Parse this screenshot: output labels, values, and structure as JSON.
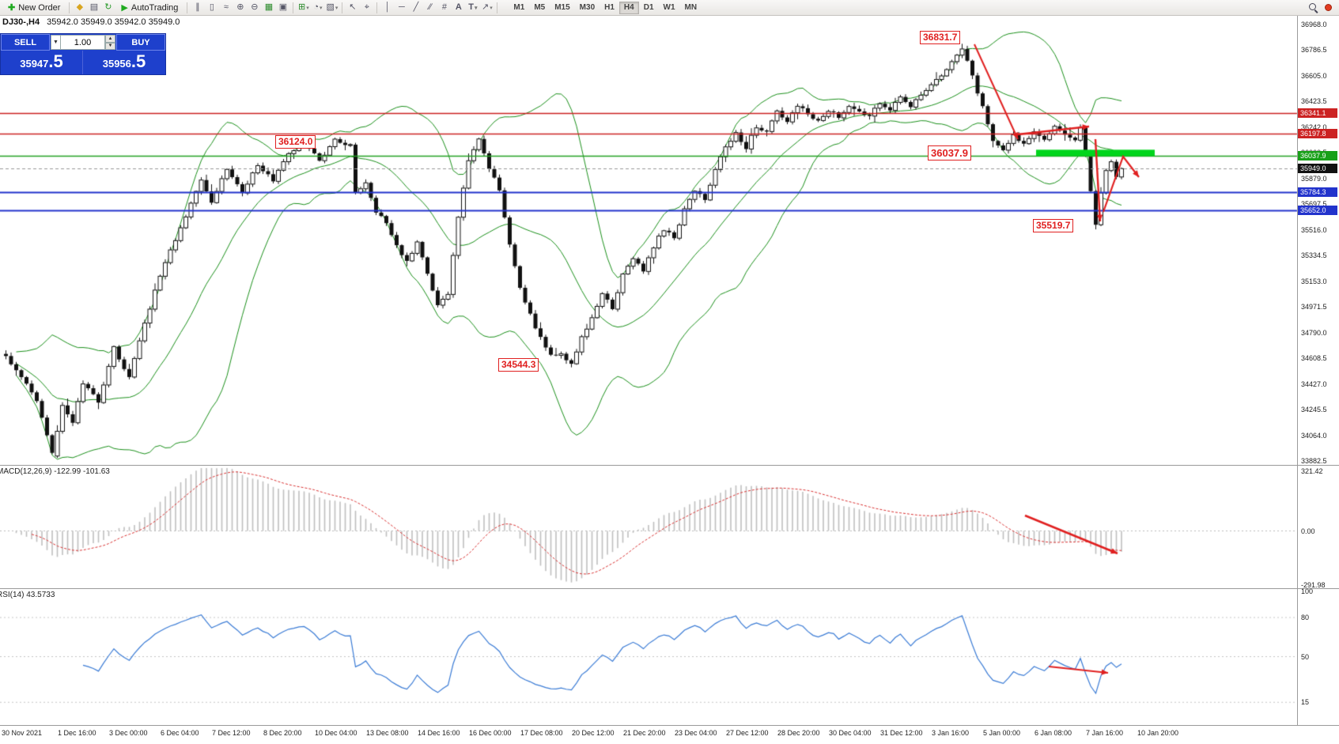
{
  "toolbar": {
    "new_order_label": "New Order",
    "autotrading_label": "AutoTrading",
    "timeframe_labels": [
      "M1",
      "M5",
      "M15",
      "M30",
      "H1",
      "H4",
      "D1",
      "W1",
      "MN"
    ],
    "active_timeframe": "H4"
  },
  "symbol_bar": {
    "symbol_period": "DJ30-,H4",
    "quotes": "35942.0 35949.0 35942.0 35949.0"
  },
  "trade_panel": {
    "sell_label": "SELL",
    "buy_label": "BUY",
    "lot_value": "1.00",
    "sell_price_small": "35947",
    "sell_price_big": ".5",
    "buy_price_small": "35956",
    "buy_price_big": ".5"
  },
  "annotations": {
    "high_label": "36831.7",
    "resistance_label": "36124.0",
    "mid_label": "36037.9",
    "swing_low_label": "35519.7",
    "major_low_label": "34544.3"
  },
  "macd_panel": {
    "label": "MACD(12,26,9) -122.99 -101.63",
    "axis_values": [
      "321.42",
      "0.00",
      "-291.98"
    ]
  },
  "rsi_panel": {
    "label": "RSI(14) 43.5733",
    "axis_values": [
      "100",
      "80",
      "50",
      "15"
    ]
  },
  "price_axis": {
    "ladder": [
      "36968.0",
      "36786.5",
      "36605.0",
      "36423.5",
      "36242.0",
      "36060.5",
      "35879.0",
      "35697.5",
      "35516.0",
      "35334.5",
      "35153.0",
      "34971.5",
      "34790.0",
      "34608.5",
      "34427.0",
      "34245.5",
      "34064.0",
      "33882.5"
    ],
    "tags": [
      {
        "value": "36341.1",
        "price": 36341.1,
        "color": "#cc2222"
      },
      {
        "value": "36197.8",
        "price": 36197.8,
        "color": "#cc2222"
      },
      {
        "value": "36037.9",
        "price": 36037.9,
        "color": "#18a018"
      },
      {
        "value": "35949.0",
        "price": 35949.0,
        "color": "#111111"
      },
      {
        "value": "35784.3",
        "price": 35784.3,
        "color": "#2233cc"
      },
      {
        "value": "35652.0",
        "price": 35652.0,
        "color": "#2233cc"
      }
    ]
  },
  "time_axis": [
    "30 Nov 2021",
    "1 Dec 16:00",
    "3 Dec 00:00",
    "6 Dec 04:00",
    "7 Dec 12:00",
    "8 Dec 20:00",
    "10 Dec 04:00",
    "13 Dec 08:00",
    "14 Dec 16:00",
    "16 Dec 00:00",
    "17 Dec 08:00",
    "20 Dec 12:00",
    "21 Dec 20:00",
    "23 Dec 04:00",
    "27 Dec 12:00",
    "28 Dec 20:00",
    "30 Dec 04:00",
    "31 Dec 12:00",
    "3 Jan 16:00",
    "5 Jan 00:00",
    "6 Jan 08:00",
    "7 Jan 16:00",
    "10 Jan 20:00"
  ],
  "colors": {
    "panel_blue": "#1e40cc",
    "annotation_red": "#e02020",
    "zone_green": "#00d51c",
    "band_green": "#1a8f1a",
    "rsi_blue": "#3a7bd5",
    "macd_signal_red": "#d83030",
    "histogram_gray": "#bfbfbf",
    "hline_red": "#cc2222",
    "hline_green": "#22a022",
    "hline_blue": "#2233cc",
    "candle_outline": "#111111"
  },
  "chart_data": {
    "type": "candlestick",
    "symbol": "DJ30-",
    "timeframe": "H4",
    "price_range": [
      33882.5,
      36968.0
    ],
    "candle_count": 218,
    "current_bid": 35949.0,
    "sell_quote": 35947.5,
    "buy_quote": 35956.5,
    "close_path_anchors": [
      [
        0,
        34620
      ],
      [
        3,
        34480
      ],
      [
        6,
        34300
      ],
      [
        9,
        33930
      ],
      [
        11,
        34280
      ],
      [
        13,
        34150
      ],
      [
        15,
        34430
      ],
      [
        18,
        34300
      ],
      [
        21,
        34680
      ],
      [
        24,
        34470
      ],
      [
        27,
        34850
      ],
      [
        30,
        35200
      ],
      [
        33,
        35450
      ],
      [
        36,
        35700
      ],
      [
        38,
        35880
      ],
      [
        40,
        35720
      ],
      [
        43,
        35950
      ],
      [
        46,
        35780
      ],
      [
        49,
        35980
      ],
      [
        52,
        35860
      ],
      [
        55,
        36060
      ],
      [
        58,
        36124
      ],
      [
        61,
        36010
      ],
      [
        64,
        36150
      ],
      [
        67,
        36110
      ],
      [
        68,
        35780
      ],
      [
        70,
        35850
      ],
      [
        72,
        35650
      ],
      [
        74,
        35560
      ],
      [
        76,
        35400
      ],
      [
        78,
        35300
      ],
      [
        80,
        35420
      ],
      [
        82,
        35200
      ],
      [
        84,
        34990
      ],
      [
        86,
        35060
      ],
      [
        88,
        35600
      ],
      [
        90,
        36000
      ],
      [
        92,
        36150
      ],
      [
        94,
        35950
      ],
      [
        96,
        35800
      ],
      [
        98,
        35420
      ],
      [
        100,
        35100
      ],
      [
        103,
        34820
      ],
      [
        106,
        34630
      ],
      [
        108,
        34650
      ],
      [
        110,
        34560
      ],
      [
        112,
        34750
      ],
      [
        114,
        34900
      ],
      [
        116,
        35060
      ],
      [
        118,
        34960
      ],
      [
        120,
        35200
      ],
      [
        122,
        35320
      ],
      [
        124,
        35220
      ],
      [
        126,
        35400
      ],
      [
        128,
        35520
      ],
      [
        130,
        35460
      ],
      [
        132,
        35660
      ],
      [
        134,
        35800
      ],
      [
        136,
        35720
      ],
      [
        138,
        35950
      ],
      [
        140,
        36100
      ],
      [
        142,
        36200
      ],
      [
        144,
        36100
      ],
      [
        146,
        36250
      ],
      [
        148,
        36200
      ],
      [
        150,
        36350
      ],
      [
        152,
        36280
      ],
      [
        154,
        36400
      ],
      [
        156,
        36330
      ],
      [
        158,
        36280
      ],
      [
        160,
        36360
      ],
      [
        162,
        36310
      ],
      [
        164,
        36400
      ],
      [
        166,
        36350
      ],
      [
        168,
        36310
      ],
      [
        170,
        36420
      ],
      [
        172,
        36360
      ],
      [
        174,
        36450
      ],
      [
        176,
        36390
      ],
      [
        178,
        36480
      ],
      [
        180,
        36530
      ],
      [
        183,
        36650
      ],
      [
        186,
        36800
      ],
      [
        188,
        36600
      ],
      [
        190,
        36380
      ],
      [
        192,
        36150
      ],
      [
        194,
        36080
      ],
      [
        196,
        36180
      ],
      [
        198,
        36120
      ],
      [
        200,
        36220
      ],
      [
        202,
        36160
      ],
      [
        204,
        36250
      ],
      [
        206,
        36200
      ],
      [
        208,
        36160
      ],
      [
        209,
        36230
      ],
      [
        210,
        36060
      ],
      [
        211,
        35800
      ],
      [
        212,
        35560
      ],
      [
        213,
        35780
      ],
      [
        214,
        35940
      ],
      [
        215,
        36000
      ],
      [
        216,
        35880
      ],
      [
        217,
        35949
      ]
    ],
    "key_points": [
      {
        "i": 9,
        "type": "low",
        "price": 33930.0
      },
      {
        "i": 58,
        "type": "high",
        "price": 36124.0
      },
      {
        "i": 110,
        "type": "low",
        "price": 34544.3
      },
      {
        "i": 186,
        "type": "high",
        "price": 36831.7
      },
      {
        "i": 212,
        "type": "low",
        "price": 35519.7
      }
    ],
    "hlines": [
      {
        "price": 36341.1,
        "color": "#cc2222",
        "width": 1.3,
        "style": "solid"
      },
      {
        "price": 36197.8,
        "color": "#cc2222",
        "width": 1.3,
        "style": "solid"
      },
      {
        "price": 36037.9,
        "color": "#22a022",
        "width": 1.3,
        "style": "solid"
      },
      {
        "price": 35784.3,
        "color": "#2233cc",
        "width": 2,
        "style": "solid"
      },
      {
        "price": 35652.0,
        "color": "#2233cc",
        "width": 2,
        "style": "solid"
      },
      {
        "price": 35949.0,
        "color": "#999999",
        "width": 1,
        "style": "dash"
      }
    ],
    "indicators": {
      "bollinger": {
        "period": 20,
        "deviation": 2
      },
      "macd": {
        "fast": 12,
        "slow": 26,
        "signal": 9,
        "current_macd": -122.99,
        "current_signal": -101.63,
        "axis_max": 321.42,
        "axis_min": -291.98
      },
      "rsi": {
        "period": 14,
        "current": 43.5733,
        "levels": [
          80,
          50,
          15
        ]
      }
    }
  }
}
